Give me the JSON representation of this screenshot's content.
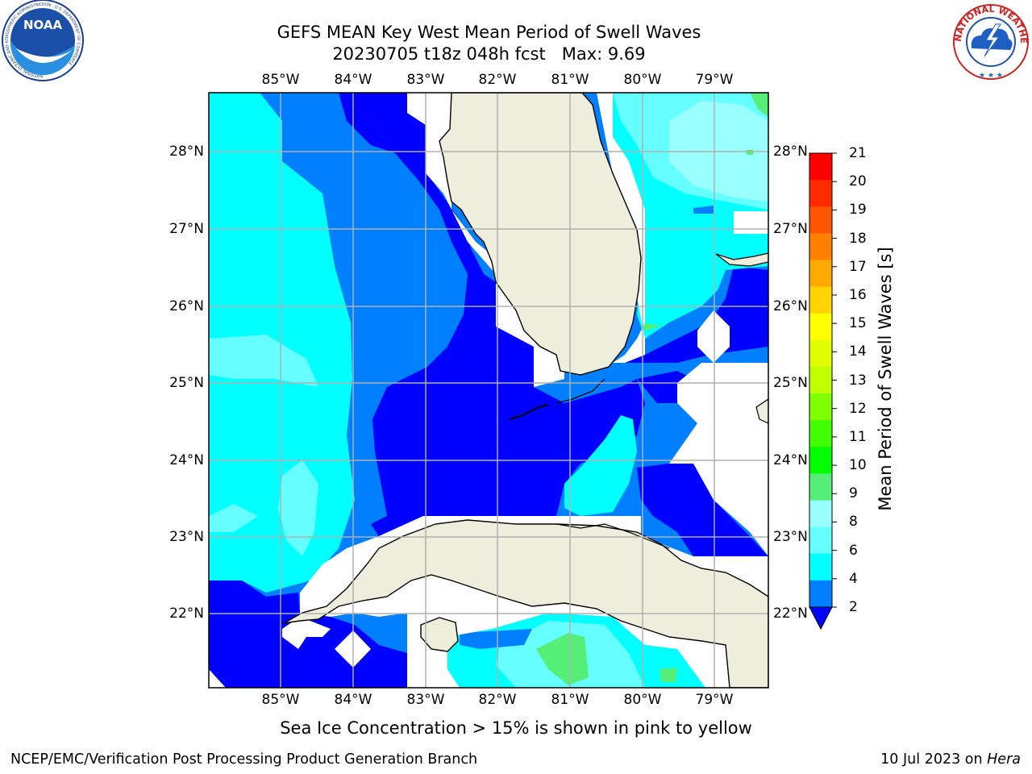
{
  "title": {
    "line1": "GEFS MEAN Key West Mean Period of Swell Waves",
    "line2": "20230705 t18z 048h fcst   Max: 9.69"
  },
  "map": {
    "lon_labels": [
      "85°W",
      "84°W",
      "83°W",
      "82°W",
      "81°W",
      "80°W",
      "79°W"
    ],
    "lat_labels": [
      "28°N",
      "27°N",
      "26°N",
      "25°N",
      "24°N",
      "23°N",
      "22°N"
    ],
    "colors": {
      "land": "#eeeedd",
      "band_2_4": "#0000ff",
      "band_4_6": "#0080ff",
      "band_6_8": "#00ffff",
      "band_8_9": "#66ffff",
      "band_9_10": "#99ffff",
      "band_10_11": "#55ee77",
      "grid": "#b0b0b0"
    }
  },
  "colorbar": {
    "label": "Mean Period of Swell Waves [s]",
    "ticks": [
      "21",
      "20",
      "19",
      "18",
      "17",
      "16",
      "15",
      "14",
      "13",
      "12",
      "11",
      "10",
      "9",
      "8",
      "6",
      "4",
      "2"
    ],
    "colors": [
      "#ff0000",
      "#ff2a00",
      "#ff5500",
      "#ff8000",
      "#ffaa00",
      "#ffd400",
      "#ffff00",
      "#e0ff00",
      "#c0ff00",
      "#80ff00",
      "#40ff00",
      "#00ff00",
      "#55ee77",
      "#99ffff",
      "#66ffff",
      "#00ffff",
      "#0080ff",
      "#0000ff"
    ]
  },
  "note": "Sea Ice Concentration > 15% is shown in pink to yellow",
  "footer": {
    "left": "NCEP/EMC/Verification Post Processing Product Generation Branch",
    "right_prefix": "10 Jul 2023 on ",
    "right_host": "Hera"
  },
  "logos": {
    "noaa_text": "NOAA",
    "noaa_ring": "NATIONAL OCEANIC AND ATMOSPHERIC ADMINISTRATION · U.S. DEPARTMENT OF COMMERCE",
    "nws_ring": "NATIONAL WEATHER SERVICE"
  }
}
